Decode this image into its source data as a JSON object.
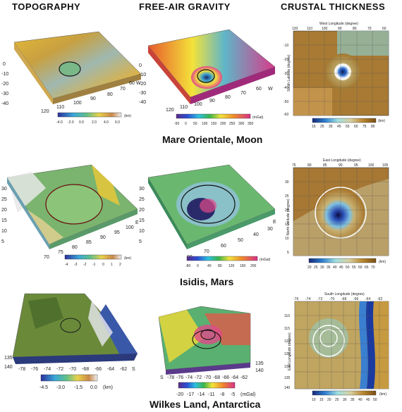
{
  "headers": {
    "topography": "TOPOGRAPHY",
    "gravity": "FREE-AIR GRAVITY",
    "crustal": "CRUSTAL THICKNESS"
  },
  "rows": [
    {
      "caption": "Mare Orientale, Moon",
      "topo": {
        "x_ticks": [
          "120",
          "110",
          "100",
          "90",
          "80"
        ],
        "y_ticks": [
          "0",
          "-10",
          "-20",
          "-30",
          "-40"
        ],
        "side_ticks": [
          "70",
          "60"
        ],
        "side_dir": "W",
        "scale_ticks": [
          "-4.0",
          "-2.0",
          "0.0",
          "2.0",
          "4.0",
          "6.0"
        ],
        "unit": "(km)"
      },
      "grav": {
        "x_ticks": [
          "120",
          "110",
          "100",
          "90",
          "80",
          "70",
          "60"
        ],
        "y_ticks": [
          "0",
          "-10",
          "-20",
          "-30",
          "-40"
        ],
        "dir": "W",
        "scale_ticks": [
          "-50",
          "0",
          "50",
          "100",
          "150",
          "200",
          "250",
          "300",
          "350"
        ],
        "unit": "(mGal)"
      },
      "crust": {
        "top_label": "West Longitude (degree)",
        "side_label": "South Latitude (degree)",
        "x_ticks": [
          "120",
          "110",
          "100",
          "90",
          "80",
          "70",
          "60"
        ],
        "y_ticks": [
          "-10",
          "-20",
          "-30",
          "-40",
          "-50",
          "-60"
        ],
        "scale_ticks": [
          "15",
          "25",
          "35",
          "45",
          "55",
          "65",
          "75",
          "85"
        ],
        "unit": "(km)"
      }
    },
    {
      "caption": "Isidis, Mars",
      "topo": {
        "x_ticks": [
          "70",
          "75",
          "80",
          "85",
          "90",
          "95",
          "100"
        ],
        "y_ticks": [
          "30",
          "25",
          "20",
          "15",
          "10",
          "5"
        ],
        "dir": "E",
        "scale_ticks": [
          "-4",
          "-3",
          "-2",
          "-1",
          "0",
          "1",
          "2"
        ],
        "unit": "(km)"
      },
      "grav": {
        "x_ticks": [
          "80",
          "70",
          "60",
          "50",
          "40",
          "30"
        ],
        "y_ticks": [
          "30",
          "25",
          "20",
          "15",
          "10",
          "5"
        ],
        "dir": "E",
        "scale_ticks": [
          "-80",
          "0",
          "40",
          "80",
          "120",
          "160",
          "200"
        ],
        "unit": "(mGal)"
      },
      "crust": {
        "top_label": "East Longitude (degree)",
        "side_label": "North Latitude (degree)",
        "x_ticks": [
          "75",
          "80",
          "85",
          "90",
          "95",
          "100",
          "105"
        ],
        "y_ticks": [
          "30",
          "25",
          "20",
          "15",
          "10",
          "5"
        ],
        "scale_ticks": [
          "20",
          "25",
          "30",
          "35",
          "40",
          "45",
          "50",
          "55",
          "60",
          "65",
          "70"
        ],
        "unit": "(km)"
      }
    },
    {
      "caption": "Wilkes Land, Antarctica",
      "topo": {
        "corner_ticks": [
          "135",
          "140"
        ],
        "x_ticks": [
          "-78",
          "-76",
          "-74",
          "-72",
          "-70",
          "-68",
          "-66",
          "-64",
          "-62"
        ],
        "dir": "S",
        "scale_ticks": [
          "-4.5",
          "-3.0",
          "-1.5",
          "0.0"
        ],
        "unit": "(km)"
      },
      "grav": {
        "corner_ticks": [
          "135",
          "140"
        ],
        "start": "S",
        "x_ticks": [
          "-78",
          "-76",
          "-74",
          "-72",
          "-70",
          "-68",
          "-66",
          "-64",
          "-62"
        ],
        "scale_ticks": [
          "-20",
          "-17",
          "-14",
          "-11",
          "-8",
          "-5"
        ],
        "unit": "(mGal)"
      },
      "crust": {
        "top_label": "South Longitude (degree)",
        "side_label": "East Longitude (degree)",
        "x_ticks": [
          "-76",
          "-74",
          "-72",
          "-70",
          "-68",
          "-66",
          "-64",
          "-62"
        ],
        "y_ticks": [
          "110",
          "115",
          "120",
          "125",
          "130",
          "135",
          "140"
        ],
        "scale_ticks": [
          "10",
          "15",
          "20",
          "25",
          "30",
          "35",
          "40",
          "45",
          "50"
        ],
        "unit": "(km)"
      }
    }
  ]
}
